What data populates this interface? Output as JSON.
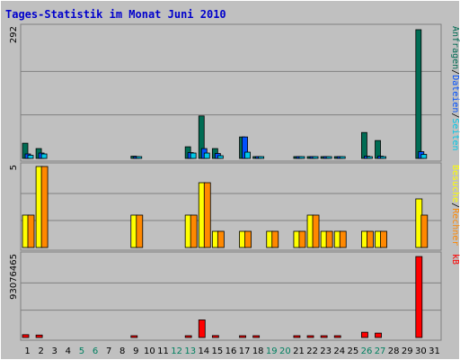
{
  "colors": {
    "background": "#c0c0c0",
    "outer": "#ffffff",
    "frame": "#808080",
    "title": "#0000cc",
    "grid": "#808080",
    "hits": "#006c54",
    "files": "#0050ff",
    "pages": "#00c8e8",
    "visits": "#ffff00",
    "sites": "#ff8800",
    "kbytes": "#ff0000",
    "weekend_label": "#008060",
    "day_label": "#000000"
  },
  "chart_data": {
    "type": "bar",
    "title": "Tages-Statistik im Monat Juni 2010",
    "categories": [
      "1",
      "2",
      "3",
      "4",
      "5",
      "6",
      "7",
      "8",
      "9",
      "10",
      "11",
      "12",
      "13",
      "14",
      "15",
      "16",
      "17",
      "18",
      "19",
      "20",
      "21",
      "22",
      "23",
      "24",
      "25",
      "26",
      "27",
      "28",
      "29",
      "30",
      "31"
    ],
    "weekend_days": [
      "5",
      "6",
      "12",
      "13",
      "19",
      "20",
      "26",
      "27"
    ],
    "panels": [
      {
        "id": "top",
        "ymax": 292,
        "ymax_label": "292",
        "right_labels": [
          {
            "text": "Anfragen",
            "color": "#006c54"
          },
          {
            "text": "/",
            "color": "#000000"
          },
          {
            "text": "Dateien",
            "color": "#0050ff"
          },
          {
            "text": "/",
            "color": "#000000"
          },
          {
            "text": "Seiten",
            "color": "#00c8e8"
          }
        ],
        "series": [
          {
            "name": "Anfragen",
            "color": "#006c54",
            "values": [
              34,
              22,
              0,
              0,
              0,
              0,
              0,
              0,
              5,
              0,
              0,
              0,
              26,
              95,
              22,
              0,
              48,
              4,
              0,
              0,
              2,
              4,
              2,
              2,
              0,
              58,
              40,
              0,
              0,
              288,
              0
            ]
          },
          {
            "name": "Dateien",
            "color": "#0050ff",
            "values": [
              10,
              12,
              0,
              0,
              0,
              0,
              0,
              0,
              4,
              0,
              0,
              0,
              13,
              22,
              11,
              0,
              48,
              2,
              0,
              0,
              1,
              3,
              1,
              1,
              0,
              5,
              5,
              0,
              0,
              15,
              0
            ]
          },
          {
            "name": "Seiten",
            "color": "#00c8e8",
            "values": [
              7,
              10,
              0,
              0,
              0,
              0,
              0,
              0,
              3,
              0,
              0,
              0,
              12,
              12,
              6,
              0,
              14,
              1,
              0,
              0,
              1,
              2,
              1,
              1,
              0,
              3,
              3,
              0,
              0,
              9,
              0
            ]
          }
        ]
      },
      {
        "id": "middle",
        "ymax": 5,
        "ymax_label": "5",
        "right_labels": [
          {
            "text": "Besuche",
            "color": "#ffff00"
          },
          {
            "text": "/",
            "color": "#000000"
          },
          {
            "text": "Rechner",
            "color": "#ff8800"
          }
        ],
        "series": [
          {
            "name": "Besuche",
            "color": "#ffff00",
            "values": [
              2,
              5,
              0,
              0,
              0,
              0,
              0,
              0,
              2,
              0,
              0,
              0,
              2,
              4,
              1,
              0,
              1,
              0,
              1,
              0,
              1,
              2,
              1,
              1,
              0,
              1,
              1,
              0,
              0,
              3,
              0
            ]
          },
          {
            "name": "Rechner",
            "color": "#ff8800",
            "values": [
              2,
              5,
              0,
              0,
              0,
              0,
              0,
              0,
              2,
              0,
              0,
              0,
              2,
              4,
              1,
              0,
              1,
              0,
              1,
              0,
              1,
              2,
              1,
              1,
              0,
              1,
              1,
              0,
              0,
              2,
              0
            ]
          }
        ]
      },
      {
        "id": "bottom",
        "ymax": 93076465,
        "ymax_label": "93076465",
        "right_labels": [
          {
            "text": "kB",
            "color": "#ff0000"
          }
        ],
        "series": [
          {
            "name": "kB",
            "color": "#ff0000",
            "values": [
              3200000,
              2800000,
              0,
              0,
              0,
              0,
              0,
              0,
              900000,
              0,
              0,
              0,
              1200000,
              20000000,
              2200000,
              0,
              1200000,
              500000,
              0,
              0,
              800000,
              1000000,
              800000,
              800000,
              0,
              6000000,
              5000000,
              0,
              0,
              92000000,
              0
            ]
          }
        ]
      }
    ]
  }
}
